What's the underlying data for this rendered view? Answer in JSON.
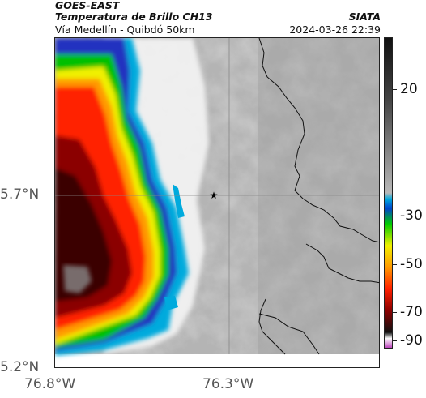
{
  "header": {
    "satellite": "GOES-EAST",
    "product": "Temperatura de Brillo CH13",
    "region": "Vía Medellín - Quibdó 50km",
    "source": "SIATA",
    "datetime": "2024-03-26 22:39"
  },
  "map": {
    "lat_labels": [
      "5.7°N",
      "5.2°N"
    ],
    "lon_labels": [
      "76.8°W",
      "76.3°W"
    ],
    "gridlines": true,
    "marker": "star-icon"
  },
  "colorbar": {
    "ticks": [
      "20",
      "-30",
      "-50",
      "-70",
      "-90"
    ],
    "tick_values": [
      20,
      -30,
      -50,
      -70,
      -90
    ],
    "range": [
      -95,
      40
    ],
    "colors": [
      "#bb44bb",
      "#ffffff",
      "#111111",
      "#8b0000",
      "#ff2000",
      "#ff9a00",
      "#f0f000",
      "#00cc00",
      "#0044cc",
      "#00aadd",
      "#b8b8b8",
      "#444444",
      "#111111"
    ]
  },
  "colors": {
    "cloud_gray": "#b0b0b0",
    "frame": "#222222"
  }
}
